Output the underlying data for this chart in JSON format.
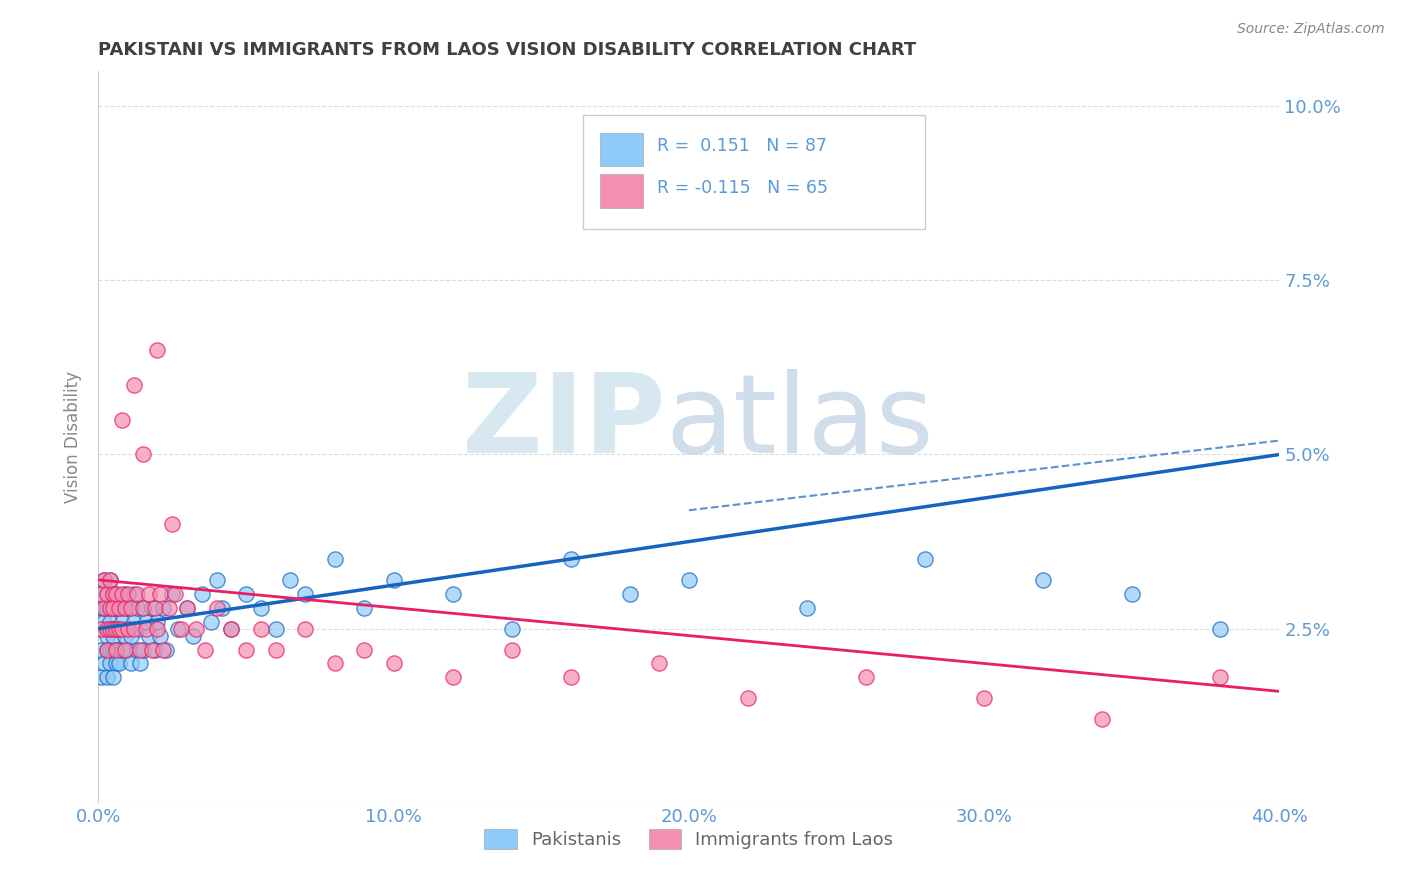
{
  "title": "PAKISTANI VS IMMIGRANTS FROM LAOS VISION DISABILITY CORRELATION CHART",
  "source": "Source: ZipAtlas.com",
  "ylabel": "Vision Disability",
  "xlim": [
    0.0,
    0.4
  ],
  "ylim": [
    0.0,
    0.105
  ],
  "yticks": [
    0.0,
    0.025,
    0.05,
    0.075,
    0.1
  ],
  "ytick_labels": [
    "",
    "2.5%",
    "5.0%",
    "7.5%",
    "10.0%"
  ],
  "xticks": [
    0.0,
    0.1,
    0.2,
    0.3,
    0.4
  ],
  "xtick_labels": [
    "0.0%",
    "10.0%",
    "20.0%",
    "30.0%",
    "40.0%"
  ],
  "pakistani_R": 0.151,
  "pakistani_N": 87,
  "laos_R": -0.115,
  "laos_N": 65,
  "pakistani_color": "#90CAF9",
  "laos_color": "#F48FB1",
  "pakistani_line_color": "#1565C0",
  "laos_line_color": "#E91E63",
  "background_color": "#FFFFFF",
  "grid_color": "#CCCCCC",
  "title_color": "#404040",
  "axis_label_color": "#5B9BD5",
  "legend_label_1": "Pakistanis",
  "legend_label_2": "Immigrants from Laos",
  "pk_x": [
    0.001,
    0.001,
    0.001,
    0.001,
    0.001,
    0.002,
    0.002,
    0.002,
    0.002,
    0.003,
    0.003,
    0.003,
    0.003,
    0.003,
    0.004,
    0.004,
    0.004,
    0.004,
    0.004,
    0.005,
    0.005,
    0.005,
    0.005,
    0.005,
    0.005,
    0.006,
    0.006,
    0.006,
    0.006,
    0.006,
    0.007,
    0.007,
    0.007,
    0.007,
    0.008,
    0.008,
    0.008,
    0.009,
    0.009,
    0.01,
    0.01,
    0.01,
    0.011,
    0.011,
    0.012,
    0.012,
    0.013,
    0.013,
    0.014,
    0.014,
    0.015,
    0.015,
    0.016,
    0.017,
    0.018,
    0.019,
    0.02,
    0.021,
    0.022,
    0.023,
    0.025,
    0.027,
    0.03,
    0.032,
    0.035,
    0.038,
    0.04,
    0.042,
    0.045,
    0.05,
    0.055,
    0.06,
    0.065,
    0.07,
    0.08,
    0.09,
    0.1,
    0.12,
    0.14,
    0.16,
    0.18,
    0.2,
    0.24,
    0.28,
    0.32,
    0.35,
    0.38
  ],
  "pk_y": [
    0.025,
    0.028,
    0.022,
    0.03,
    0.018,
    0.026,
    0.032,
    0.02,
    0.028,
    0.024,
    0.03,
    0.022,
    0.028,
    0.018,
    0.026,
    0.032,
    0.022,
    0.028,
    0.02,
    0.025,
    0.03,
    0.022,
    0.028,
    0.024,
    0.018,
    0.022,
    0.028,
    0.025,
    0.02,
    0.03,
    0.025,
    0.022,
    0.028,
    0.02,
    0.026,
    0.022,
    0.028,
    0.024,
    0.03,
    0.025,
    0.022,
    0.028,
    0.024,
    0.02,
    0.026,
    0.03,
    0.022,
    0.028,
    0.025,
    0.02,
    0.028,
    0.022,
    0.026,
    0.024,
    0.028,
    0.022,
    0.026,
    0.024,
    0.028,
    0.022,
    0.03,
    0.025,
    0.028,
    0.024,
    0.03,
    0.026,
    0.032,
    0.028,
    0.025,
    0.03,
    0.028,
    0.025,
    0.032,
    0.03,
    0.035,
    0.028,
    0.032,
    0.03,
    0.025,
    0.035,
    0.03,
    0.032,
    0.028,
    0.035,
    0.032,
    0.03,
    0.025
  ],
  "la_x": [
    0.001,
    0.001,
    0.002,
    0.002,
    0.003,
    0.003,
    0.003,
    0.004,
    0.004,
    0.004,
    0.005,
    0.005,
    0.005,
    0.006,
    0.006,
    0.006,
    0.007,
    0.007,
    0.008,
    0.008,
    0.009,
    0.009,
    0.01,
    0.01,
    0.011,
    0.012,
    0.013,
    0.014,
    0.015,
    0.016,
    0.017,
    0.018,
    0.019,
    0.02,
    0.021,
    0.022,
    0.024,
    0.026,
    0.028,
    0.03,
    0.033,
    0.036,
    0.04,
    0.045,
    0.05,
    0.055,
    0.06,
    0.07,
    0.08,
    0.09,
    0.1,
    0.12,
    0.14,
    0.16,
    0.19,
    0.22,
    0.26,
    0.3,
    0.34,
    0.38,
    0.015,
    0.02,
    0.025,
    0.008,
    0.012
  ],
  "la_y": [
    0.03,
    0.025,
    0.032,
    0.028,
    0.025,
    0.03,
    0.022,
    0.028,
    0.032,
    0.025,
    0.03,
    0.025,
    0.028,
    0.025,
    0.03,
    0.022,
    0.028,
    0.025,
    0.03,
    0.025,
    0.028,
    0.022,
    0.03,
    0.025,
    0.028,
    0.025,
    0.03,
    0.022,
    0.028,
    0.025,
    0.03,
    0.022,
    0.028,
    0.025,
    0.03,
    0.022,
    0.028,
    0.03,
    0.025,
    0.028,
    0.025,
    0.022,
    0.028,
    0.025,
    0.022,
    0.025,
    0.022,
    0.025,
    0.02,
    0.022,
    0.02,
    0.018,
    0.022,
    0.018,
    0.02,
    0.015,
    0.018,
    0.015,
    0.012,
    0.018,
    0.05,
    0.065,
    0.04,
    0.055,
    0.06
  ],
  "pk_line_x0": 0.0,
  "pk_line_y0": 0.025,
  "pk_line_x1": 0.4,
  "pk_line_y1": 0.05,
  "la_line_x0": 0.0,
  "la_line_y0": 0.032,
  "la_line_x1": 0.4,
  "la_line_y1": 0.016
}
